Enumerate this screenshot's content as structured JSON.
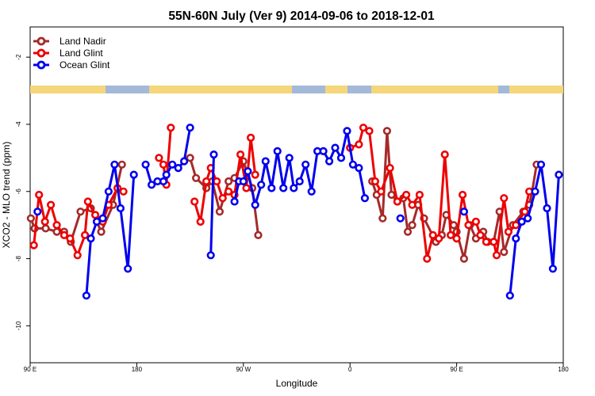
{
  "chart_data": {
    "type": "line",
    "title": "55N-60N July (Ver 9)   2014-09-06 to 2018-12-01",
    "xlabel": "Longitude",
    "ylabel": "XCO2 - MLO trend (ppm)",
    "xlim": [
      90,
      450
    ],
    "ylim": [
      -11.1,
      -1.1
    ],
    "x_ticks": [
      90,
      162,
      234,
      306,
      378,
      450
    ],
    "x_tick_labels": [
      "90 E",
      "180",
      "90 W",
      "0",
      "90 E",
      "180"
    ],
    "y_ticks": [
      -2,
      -4,
      -6,
      -8,
      -10
    ],
    "y_tick_labels": [
      "-2",
      "-4",
      "-6",
      "-8",
      "-10"
    ],
    "legend_position": "top-left",
    "colors": {
      "land_nadir": "#a52a2a",
      "land_glint": "#ee0000",
      "ocean_glint": "#0000ee",
      "map_ocean": "#a3b9d9",
      "map_land": "#f5d67a"
    },
    "series": [
      {
        "name": "Land Nadir",
        "segments": [
          [
            [
              90.5,
              -6.8
            ],
            [
              93,
              -7.1
            ],
            [
              100.5,
              -7.1
            ],
            [
              108,
              -7.2
            ],
            [
              113,
              -7.2
            ],
            [
              117.5,
              -7.5
            ],
            [
              124,
              -6.6
            ],
            [
              131,
              -6.5
            ],
            [
              138,
              -7.2
            ],
            [
              146,
              -6.4
            ],
            [
              152,
              -5.2
            ]
          ],
          [
            [
              198,
              -5.0
            ],
            [
              202,
              -5.6
            ],
            [
              209,
              -5.9
            ],
            [
              213,
              -5.7
            ],
            [
              218,
              -6.6
            ],
            [
              224,
              -5.7
            ],
            [
              228,
              -5.6
            ],
            [
              234,
              -5.1
            ],
            [
              240,
              -5.9
            ],
            [
              244,
              -7.3
            ]
          ],
          [
            [
              321,
              -5.7
            ],
            [
              324,
              -6.1
            ],
            [
              328,
              -6.8
            ],
            [
              331,
              -4.2
            ],
            [
              334,
              -6.1
            ],
            [
              338,
              -6.3
            ],
            [
              342,
              -6.2
            ],
            [
              345,
              -7.2
            ],
            [
              348,
              -7.0
            ],
            [
              352,
              -6.4
            ],
            [
              356,
              -6.8
            ],
            [
              364,
              -7.5
            ],
            [
              368,
              -7.3
            ],
            [
              371,
              -6.7
            ],
            [
              376,
              -7.0
            ],
            [
              378,
              -7.2
            ],
            [
              383,
              -8.0
            ],
            [
              387,
              -7.0
            ],
            [
              391,
              -7.4
            ],
            [
              396,
              -7.2
            ],
            [
              399,
              -7.5
            ],
            [
              403,
              -7.5
            ],
            [
              407,
              -6.6
            ],
            [
              410,
              -7.8
            ],
            [
              416,
              -7.0
            ],
            [
              423,
              -6.6
            ],
            [
              427,
              -6.4
            ],
            [
              429,
              -6.0
            ],
            [
              432,
              -5.2
            ]
          ]
        ]
      },
      {
        "name": "Land Glint",
        "segments": [
          [
            [
              92.5,
              -7.6
            ],
            [
              96,
              -6.1
            ],
            [
              100,
              -6.9
            ],
            [
              104,
              -6.4
            ],
            [
              108,
              -7.0
            ],
            [
              113,
              -7.3
            ],
            [
              117,
              -7.4
            ],
            [
              122,
              -7.9
            ],
            [
              127,
              -7.3
            ],
            [
              129,
              -6.3
            ],
            [
              134,
              -6.7
            ],
            [
              139,
              -6.9
            ],
            [
              143,
              -6.4
            ],
            [
              149,
              -5.9
            ],
            [
              153,
              -6.0
            ]
          ],
          [
            [
              177,
              -5.0
            ],
            [
              180,
              -5.2
            ],
            [
              182,
              -5.8
            ],
            [
              185,
              -4.1
            ]
          ],
          [
            [
              201,
              -6.3
            ],
            [
              205,
              -6.9
            ],
            [
              209,
              -5.7
            ],
            [
              212,
              -5.3
            ],
            [
              216,
              -5.7
            ],
            [
              220,
              -6.2
            ],
            [
              224,
              -6.0
            ],
            [
              228,
              -6.1
            ],
            [
              232,
              -4.9
            ],
            [
              236,
              -5.9
            ],
            [
              239,
              -4.4
            ],
            [
              242,
              -5.5
            ]
          ],
          [
            [
              306,
              -4.7
            ],
            [
              312,
              -4.6
            ],
            [
              315,
              -4.1
            ],
            [
              319,
              -4.2
            ],
            [
              323,
              -5.7
            ],
            [
              327,
              -6.0
            ],
            [
              333,
              -5.3
            ],
            [
              338,
              -6.3
            ],
            [
              344,
              -6.1
            ],
            [
              348,
              -6.4
            ],
            [
              353,
              -6.1
            ],
            [
              358,
              -8.0
            ],
            [
              362,
              -7.3
            ],
            [
              366,
              -7.4
            ],
            [
              370,
              -4.9
            ],
            [
              374,
              -7.3
            ],
            [
              378,
              -7.4
            ],
            [
              382,
              -6.1
            ],
            [
              386,
              -7.0
            ],
            [
              391,
              -6.9
            ],
            [
              394,
              -7.3
            ],
            [
              398,
              -7.5
            ],
            [
              403,
              -7.5
            ],
            [
              405,
              -7.9
            ],
            [
              410,
              -6.2
            ],
            [
              413,
              -7.2
            ],
            [
              418,
              -7.0
            ],
            [
              424,
              -6.6
            ],
            [
              427,
              -6.0
            ]
          ]
        ]
      },
      {
        "name": "Ocean Glint",
        "segments": [
          [
            [
              95,
              -6.6
            ]
          ],
          [
            [
              128,
              -9.1
            ],
            [
              131,
              -7.4
            ],
            [
              135,
              -6.9
            ],
            [
              139,
              -6.8
            ],
            [
              143,
              -6.0
            ],
            [
              147,
              -5.2
            ],
            [
              151,
              -6.5
            ],
            [
              156,
              -8.3
            ],
            [
              160,
              -5.5
            ]
          ],
          [
            [
              168,
              -5.2
            ],
            [
              172,
              -5.8
            ],
            [
              176,
              -5.7
            ],
            [
              180,
              -5.7
            ],
            [
              182,
              -5.5
            ],
            [
              186,
              -5.2
            ],
            [
              190,
              -5.3
            ],
            [
              194,
              -5.1
            ],
            [
              198,
              -4.1
            ]
          ],
          [
            [
              212,
              -7.9
            ],
            [
              214,
              -4.9
            ]
          ],
          [
            [
              228,
              -6.3
            ],
            [
              231,
              -5.7
            ],
            [
              234,
              -5.7
            ],
            [
              237,
              -5.4
            ],
            [
              242,
              -6.4
            ],
            [
              246,
              -5.8
            ],
            [
              249,
              -5.1
            ],
            [
              253,
              -5.9
            ],
            [
              257,
              -4.8
            ],
            [
              261,
              -5.9
            ],
            [
              265,
              -5.0
            ],
            [
              268,
              -5.9
            ],
            [
              272,
              -5.7
            ],
            [
              276,
              -5.2
            ],
            [
              280,
              -6.0
            ],
            [
              284,
              -4.8
            ],
            [
              288,
              -4.8
            ],
            [
              292,
              -5.1
            ],
            [
              296,
              -4.7
            ],
            [
              300,
              -5.0
            ],
            [
              304,
              -4.2
            ],
            [
              308,
              -5.2
            ],
            [
              312,
              -5.3
            ],
            [
              316,
              -6.2
            ]
          ],
          [
            [
              340,
              -6.8
            ]
          ],
          [
            [
              383,
              -6.6
            ]
          ],
          [
            [
              414,
              -9.1
            ],
            [
              418,
              -7.4
            ],
            [
              422,
              -6.9
            ],
            [
              426,
              -6.8
            ],
            [
              431,
              -6.0
            ],
            [
              435,
              -5.2
            ],
            [
              439,
              -6.5
            ],
            [
              443,
              -8.3
            ],
            [
              447,
              -5.5
            ]
          ]
        ]
      }
    ]
  }
}
